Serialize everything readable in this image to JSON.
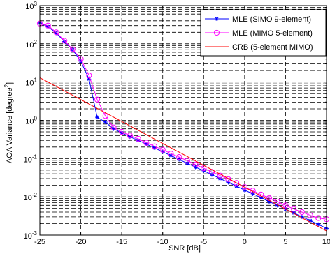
{
  "chart_data": {
    "type": "line",
    "title": "",
    "xlabel": "SNR [dB]",
    "ylabel": "AOA Variance [degree",
    "ylabel_sup": "2",
    "ylabel_close": "]",
    "xlim": [
      -25,
      10
    ],
    "ylim": [
      0.001,
      1000
    ],
    "yscale": "log",
    "grid": true,
    "legend_position": "top-right",
    "x_ticks": [
      "-25",
      "-20",
      "-15",
      "-10",
      "-5",
      "0",
      "5",
      "10"
    ],
    "y_ticks": [
      {
        "base": "10",
        "exp": "-3"
      },
      {
        "base": "10",
        "exp": "-2"
      },
      {
        "base": "10",
        "exp": "-1"
      },
      {
        "base": "10",
        "exp": "0"
      },
      {
        "base": "10",
        "exp": "1"
      },
      {
        "base": "10",
        "exp": "2"
      },
      {
        "base": "10",
        "exp": "3"
      }
    ],
    "series": [
      {
        "name": "MLE (SIMO 9-element)",
        "color": "#0000ff",
        "marker": "asterisk",
        "x": [
          -25,
          -24,
          -23,
          -22,
          -21,
          -20,
          -19,
          -18,
          -17,
          -16,
          -15,
          -14,
          -13,
          -12,
          -11,
          -10,
          -9,
          -8,
          -7,
          -6,
          -5,
          -4,
          -3,
          -2,
          -1,
          0,
          1,
          2,
          3,
          4,
          5,
          6,
          7,
          8,
          9,
          10
        ],
        "y": [
          350,
          280,
          190,
          115,
          70,
          35,
          12,
          1.2,
          0.9,
          0.6,
          0.47,
          0.37,
          0.3,
          0.24,
          0.19,
          0.15,
          0.12,
          0.095,
          0.075,
          0.06,
          0.048,
          0.038,
          0.03,
          0.024,
          0.019,
          0.015,
          0.012,
          0.0095,
          0.0075,
          0.006,
          0.0048,
          0.0038,
          0.003,
          0.0024,
          0.0019,
          0.0015
        ]
      },
      {
        "name": "MLE (MIMO 5-element)",
        "color": "#ff00ff",
        "marker": "circle",
        "x": [
          -25,
          -24,
          -23,
          -22,
          -21,
          -20,
          -19,
          -18,
          -17,
          -16,
          -15,
          -14,
          -13,
          -12,
          -11,
          -10,
          -9,
          -8,
          -7,
          -6,
          -5,
          -4,
          -3,
          -2,
          -1,
          0,
          1,
          2,
          3,
          4,
          5,
          6,
          7,
          8,
          9,
          10
        ],
        "y": [
          340,
          300,
          200,
          120,
          72,
          40,
          15,
          3.5,
          1.3,
          0.65,
          0.5,
          0.4,
          0.33,
          0.26,
          0.21,
          0.17,
          0.135,
          0.11,
          0.088,
          0.07,
          0.056,
          0.045,
          0.036,
          0.029,
          0.023,
          0.018,
          0.0145,
          0.0115,
          0.0093,
          0.0075,
          0.006,
          0.0048,
          0.004,
          0.0033,
          0.0028,
          0.0026
        ]
      },
      {
        "name": "CRB (5-element MIMO)",
        "color": "#ff0000",
        "marker": "none",
        "x": [
          -25,
          10
        ],
        "y": [
          13,
          0.00128
        ]
      }
    ]
  }
}
